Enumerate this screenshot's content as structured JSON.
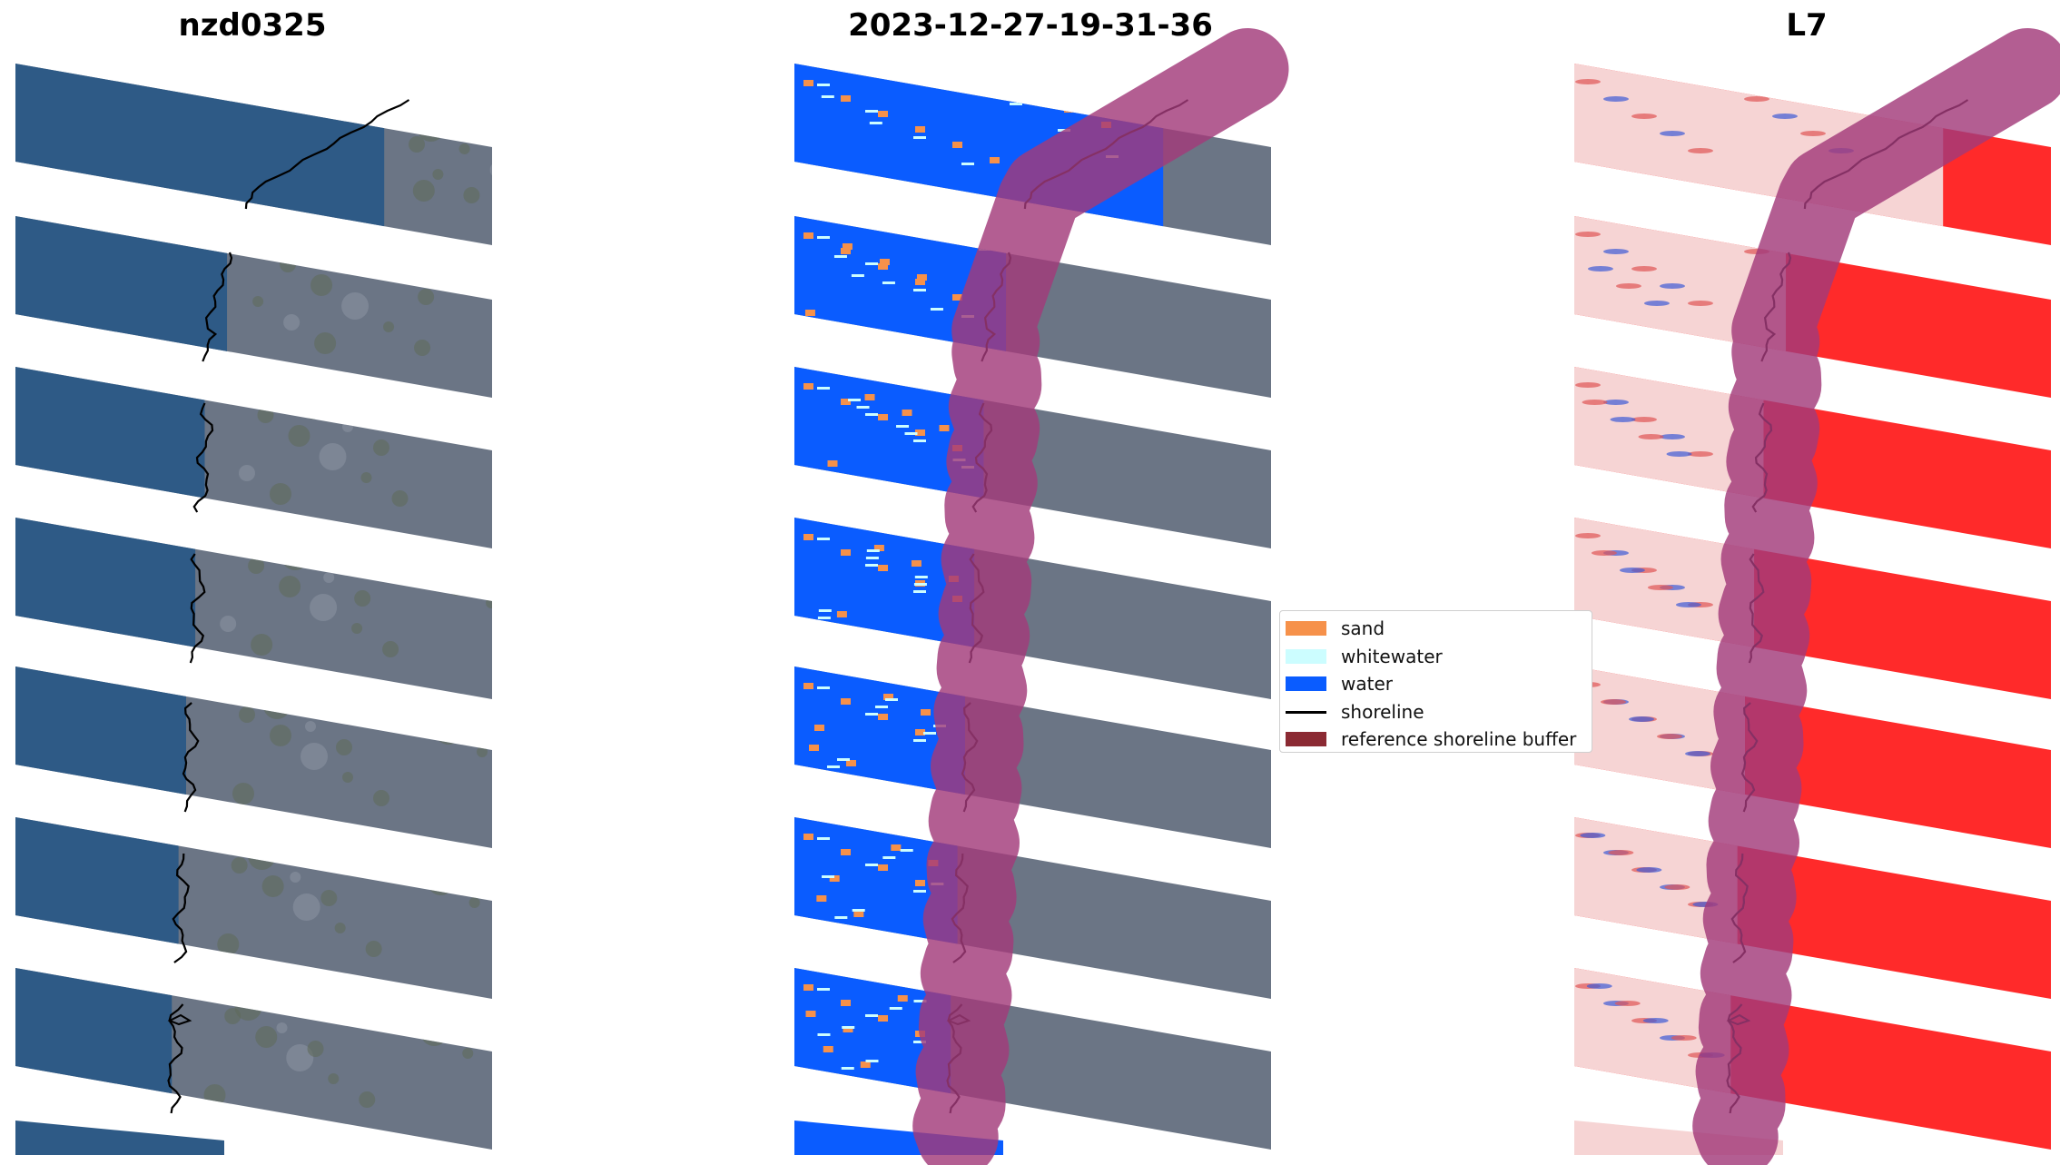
{
  "panels": [
    {
      "title": "nzd0325",
      "style": "rgb"
    },
    {
      "title": "2023-12-27-19-31-36",
      "style": "classified"
    },
    {
      "title": "L7",
      "style": "probability"
    }
  ],
  "legend": {
    "items": [
      {
        "label": "sand",
        "type": "patch",
        "color": "#f6914a"
      },
      {
        "label": "whitewater",
        "type": "patch",
        "color": "#ccfdff"
      },
      {
        "label": "water",
        "type": "patch",
        "color": "#0a5cff"
      },
      {
        "label": "shoreline",
        "type": "line",
        "color": "#000000"
      },
      {
        "label": "reference shoreline buffer",
        "type": "patch",
        "color": "#8b2a33"
      }
    ]
  },
  "colors": {
    "ocean": "#2e5a86",
    "land": "#6b7585",
    "water_class": "#0a5cff",
    "sand_class": "#f6914a",
    "whitewater_class": "#ccfdff",
    "buffer": "#a23a7a",
    "prob_water": "#f6d4d4",
    "prob_land": "#ff2a2a"
  }
}
